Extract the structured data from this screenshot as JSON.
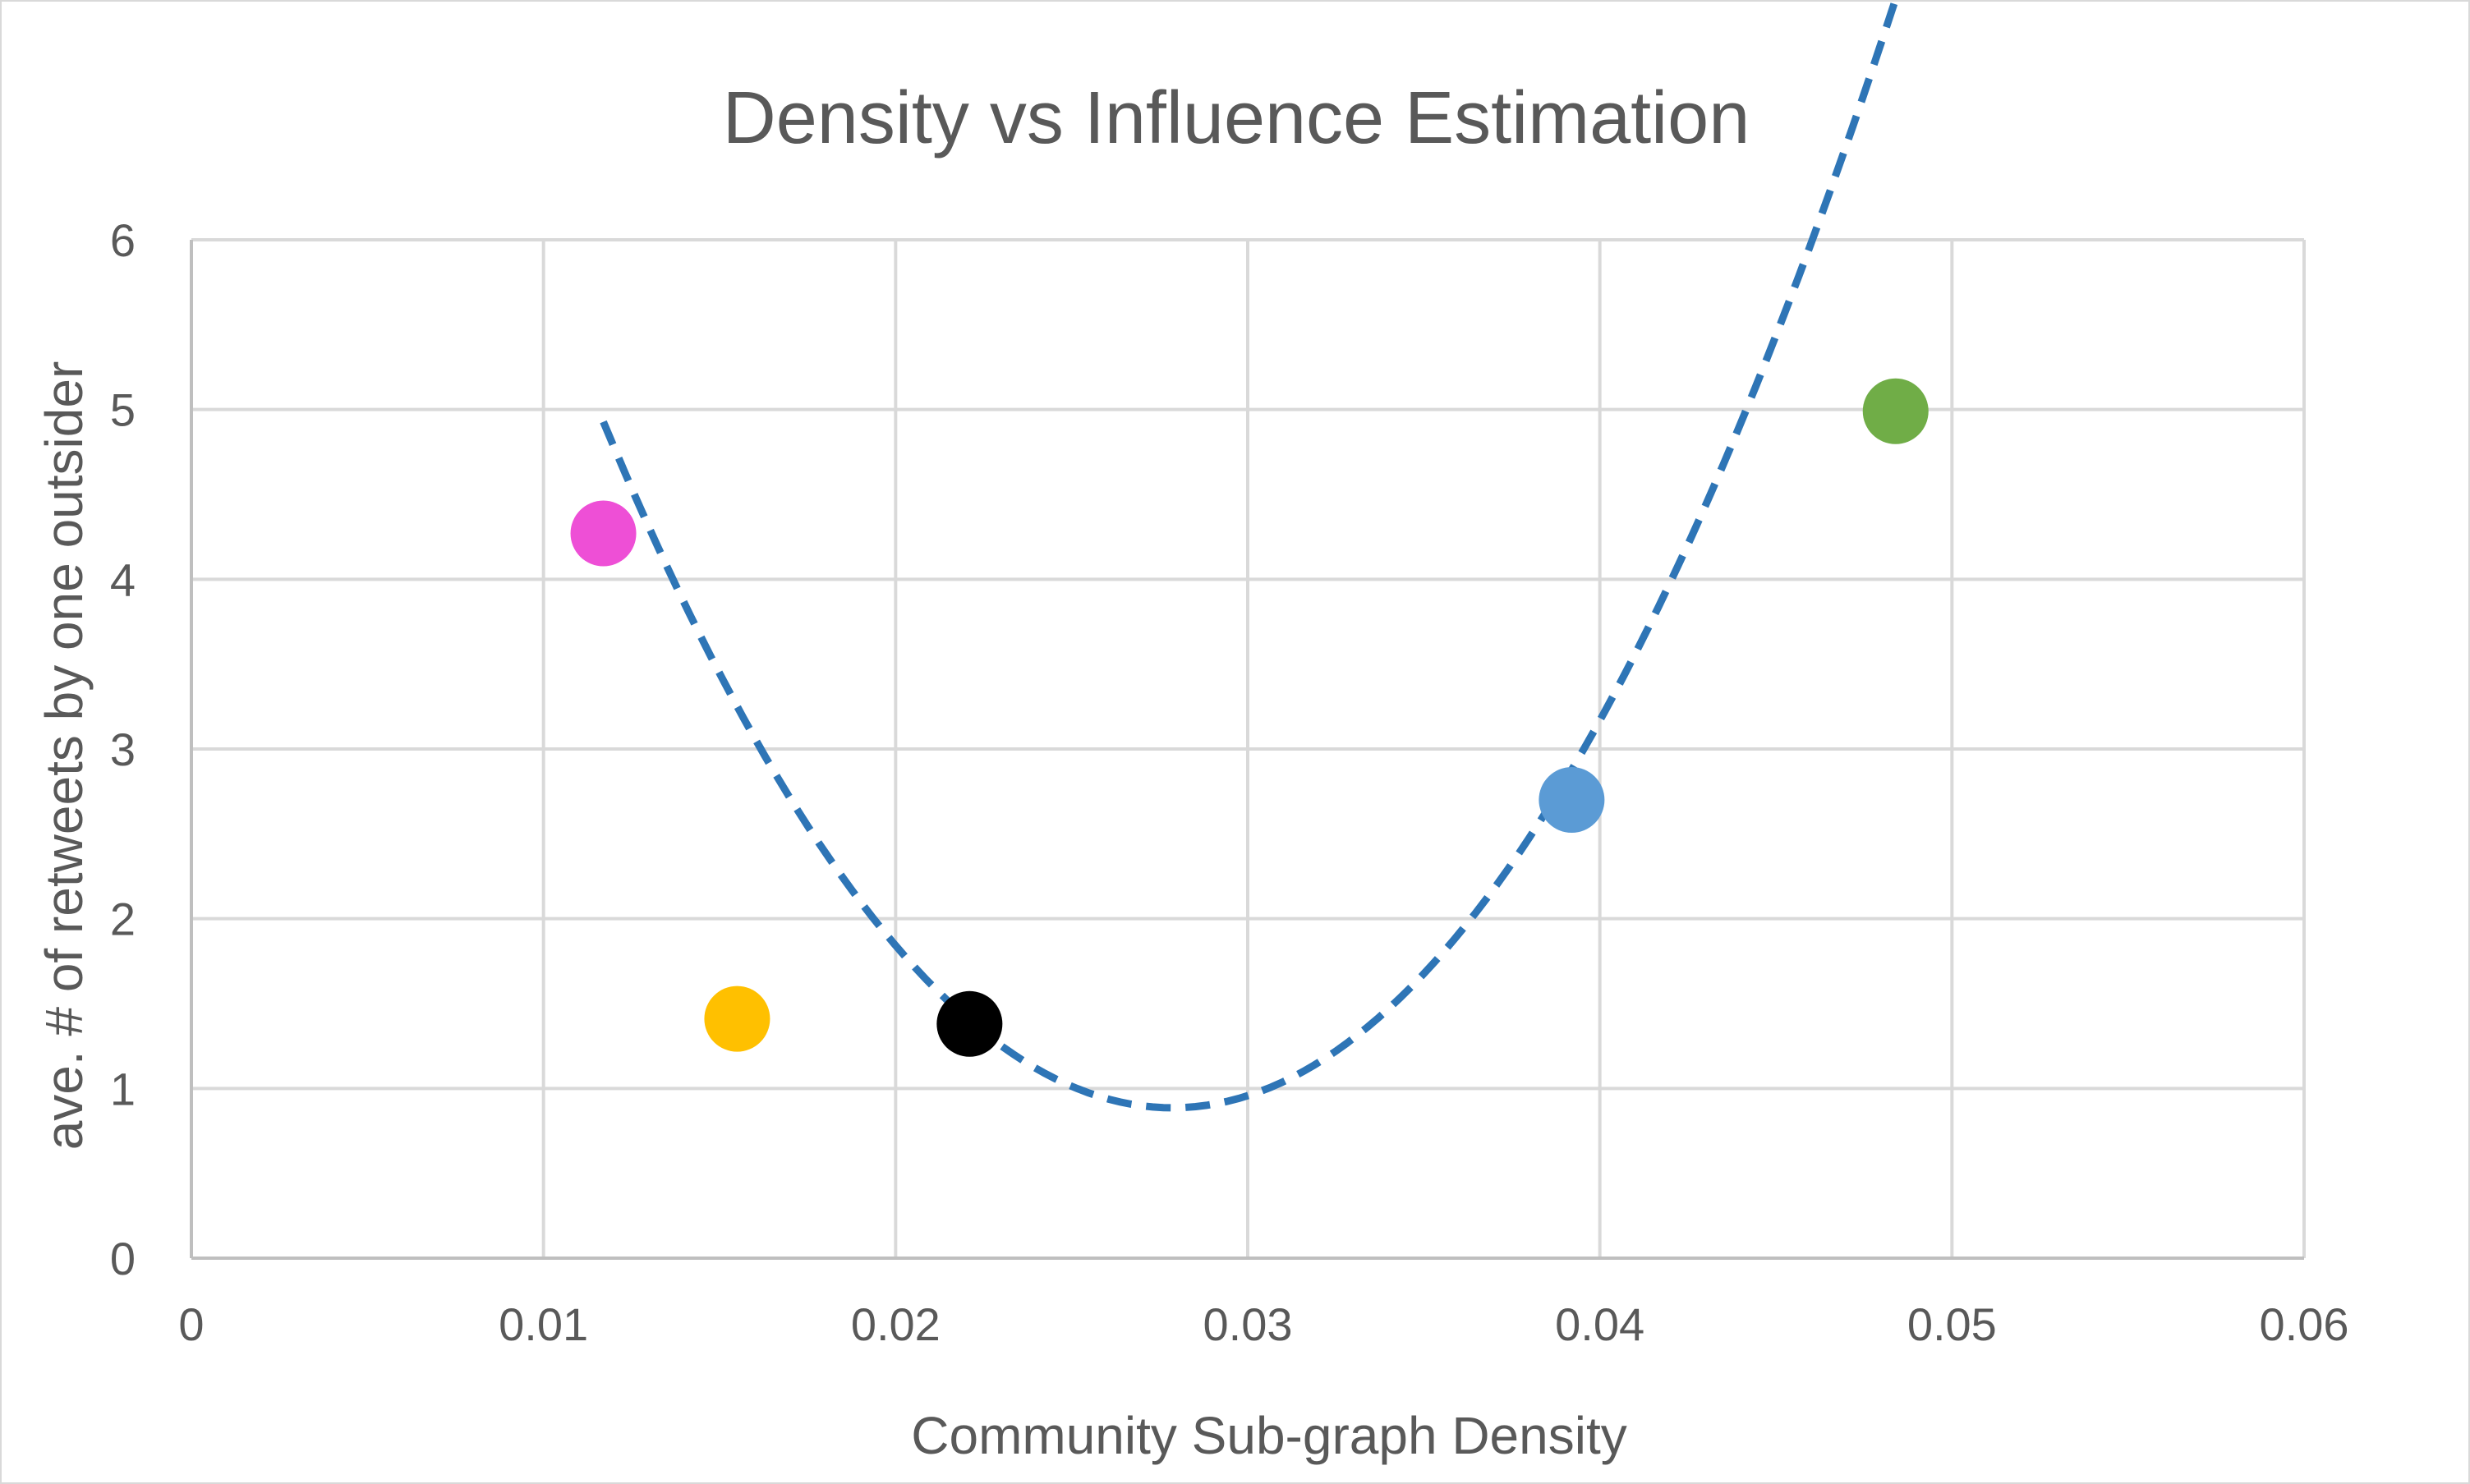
{
  "chart_data": {
    "type": "scatter",
    "title": "Density vs Influence Estimation",
    "xlabel": "Community Sub-graph Density",
    "ylabel": "ave. # of retweets by one outsider",
    "xlim": [
      0,
      0.06
    ],
    "ylim": [
      0,
      6
    ],
    "x_ticks": [
      "0",
      "0.01",
      "0.02",
      "0.03",
      "0.04",
      "0.05",
      "0.06"
    ],
    "y_ticks": [
      "0",
      "1",
      "2",
      "3",
      "4",
      "5",
      "6"
    ],
    "grid": true,
    "legend": "none",
    "points": [
      {
        "x": 0.0117,
        "y": 4.27,
        "color": "#ee4fd6"
      },
      {
        "x": 0.0155,
        "y": 1.41,
        "color": "#ffc000"
      },
      {
        "x": 0.0221,
        "y": 1.38,
        "color": "#000000"
      },
      {
        "x": 0.0392,
        "y": 2.7,
        "color": "#5b9bd5"
      },
      {
        "x": 0.0484,
        "y": 4.99,
        "color": "#70ad47"
      }
    ],
    "trendline": {
      "style": "dashed",
      "color": "#2e75b6",
      "fit": "quadratic",
      "x_range": [
        0.0117,
        0.0484
      ],
      "coefficients": [
        12.9,
        -862.5,
        15480
      ]
    }
  }
}
